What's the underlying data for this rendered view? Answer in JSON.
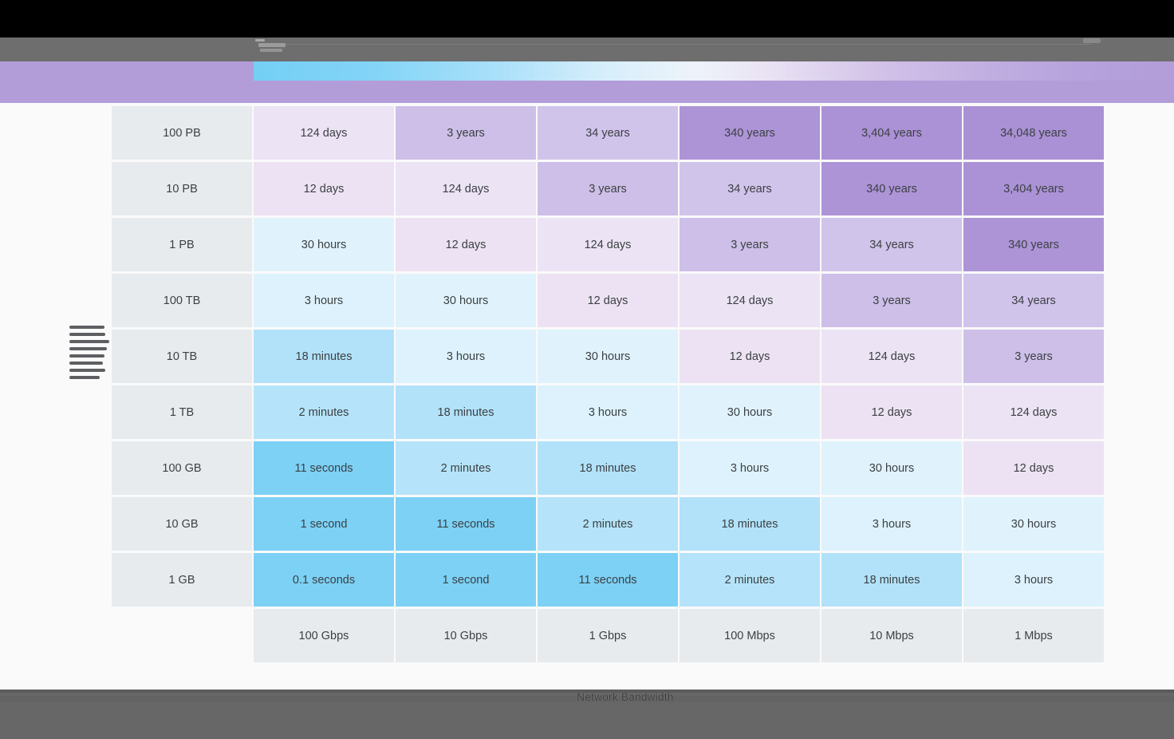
{
  "window": {
    "title_bar_color": "#000000",
    "toolbar_color": "#6e6e6e",
    "slide_band_color": "#b29dd9",
    "footer_bar_color": "#666766",
    "legend_gradient": [
      "#74cff5",
      "#eef3fa",
      "#b29dd9"
    ]
  },
  "footer": {
    "xaxis_label": "Network Bandwidth"
  },
  "chart_data": {
    "type": "heatmap",
    "x_categories": [
      "100 Gbps",
      "10 Gbps",
      "1 Gbps",
      "100 Mbps",
      "10 Mbps",
      "1 Mbps"
    ],
    "y_categories": [
      "100 PB",
      "10 PB",
      "1 PB",
      "100 TB",
      "10 TB",
      "1 TB",
      "100 GB",
      "10 GB",
      "1 GB"
    ],
    "xlabel": "Network Bandwidth",
    "ylabel_illegible": true,
    "cells": [
      [
        "124 days",
        "3 years",
        "34 years",
        "340 years",
        "3,404 years",
        "34,048 years"
      ],
      [
        "12 days",
        "124 days",
        "3 years",
        "34 years",
        "340 years",
        "3,404 years"
      ],
      [
        "30 hours",
        "12 days",
        "124 days",
        "3 years",
        "34 years",
        "340 years"
      ],
      [
        "3 hours",
        "30 hours",
        "12 days",
        "124 days",
        "3 years",
        "34 years"
      ],
      [
        "18 minutes",
        "3 hours",
        "30 hours",
        "12 days",
        "124 days",
        "3 years"
      ],
      [
        "2 minutes",
        "18 minutes",
        "3 hours",
        "30 hours",
        "12 days",
        "124 days"
      ],
      [
        "11 seconds",
        "2 minutes",
        "18 minutes",
        "3 hours",
        "30 hours",
        "12 days"
      ],
      [
        "1 second",
        "11 seconds",
        "2 minutes",
        "18 minutes",
        "3 hours",
        "30 hours"
      ],
      [
        "0.1 seconds",
        "1 second",
        "11 seconds",
        "2 minutes",
        "18 minutes",
        "3 hours"
      ]
    ],
    "value_colors": {
      "0.1 seconds": "#7cd1f5",
      "1 second": "#7cd1f5",
      "11 seconds": "#7cd1f5",
      "2 minutes": "#b5e4fa",
      "18 minutes": "#b2e2f9",
      "3 hours": "#ddf2fc",
      "30 hours": "#e0f3fd",
      "12 days": "#ede2f3",
      "124 days": "#ece3f5",
      "3 years": "#cdbfe8",
      "34 years": "#d1c4eb",
      "340 years": "#ad94d7",
      "3,404 years": "#ab92d6",
      "34,048 years": "#aa91d5"
    },
    "header_cell_color": "#e8ebee",
    "legend_position": "top",
    "grid_on": false
  }
}
